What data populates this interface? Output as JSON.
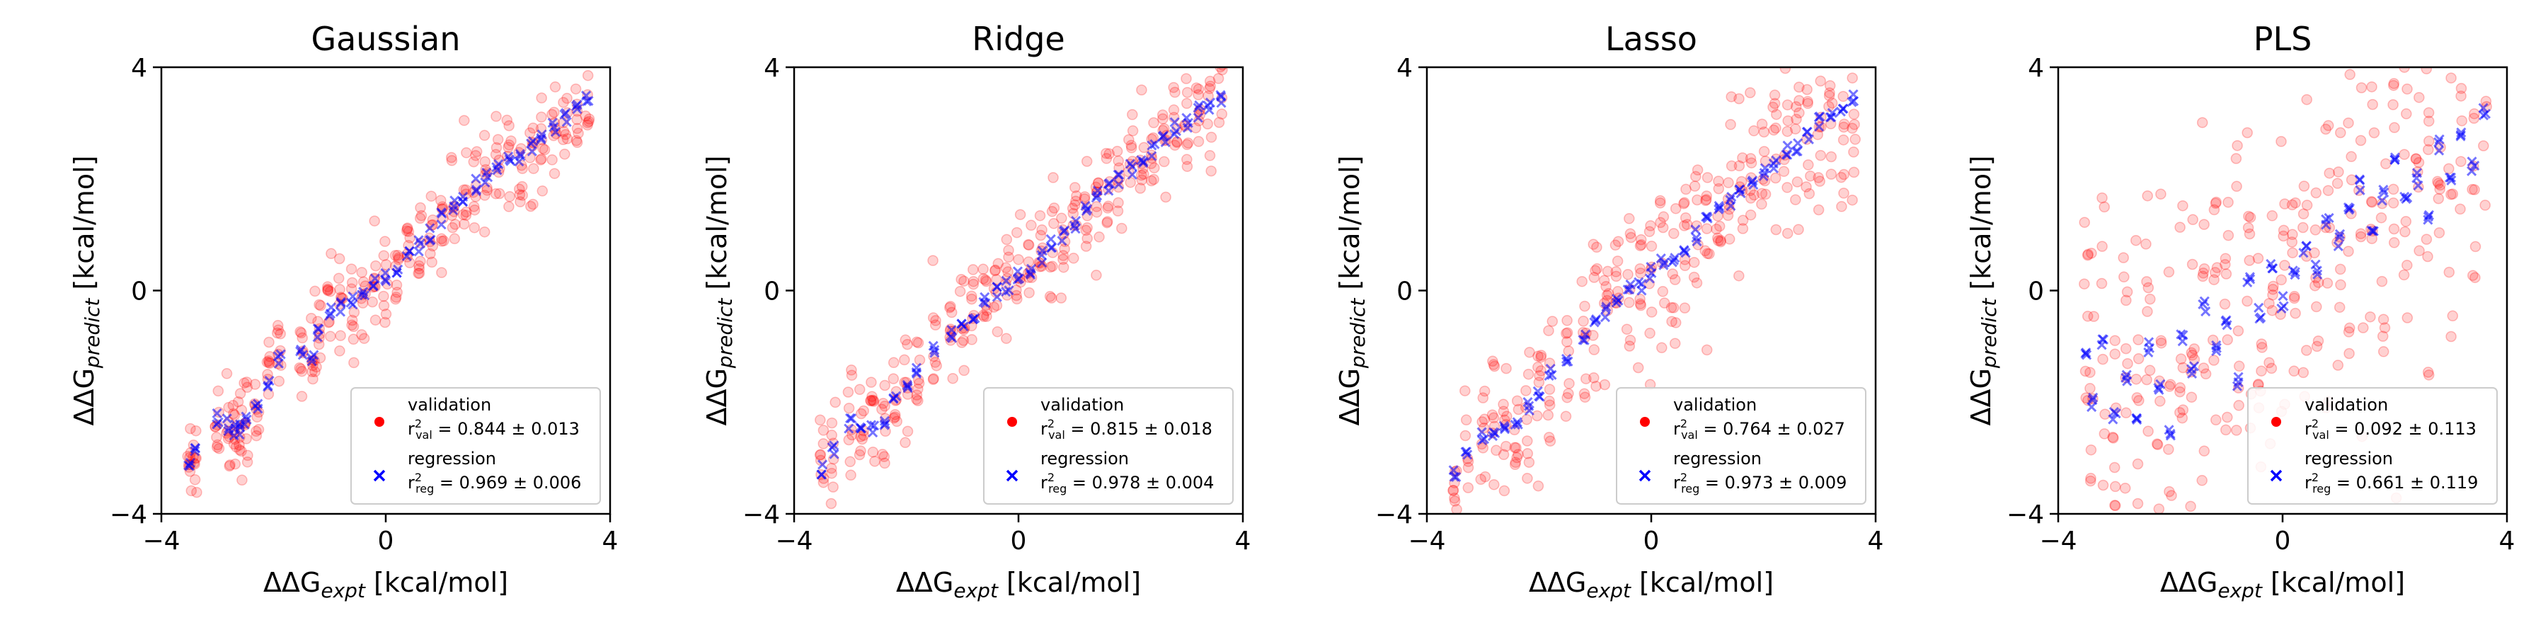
{
  "figure": {
    "x_label": {
      "symbol": "ΔΔG",
      "subscript": "expt",
      "unit": "[kcal/mol]"
    },
    "y_label": {
      "symbol": "ΔΔG",
      "subscript": "predict",
      "unit": "[kcal/mol]"
    },
    "legend": {
      "validation_label": "validation",
      "regression_label": "regression",
      "r_prefix": "r",
      "r_sup": "2",
      "val_sub": "val",
      "reg_sub": "reg"
    },
    "colors": {
      "validation": "#ff0000",
      "regression": "#0000ff"
    }
  },
  "chart_data": [
    {
      "type": "scatter",
      "title": "Gaussian",
      "xlim": [
        -4,
        4
      ],
      "ylim": [
        -4,
        4
      ],
      "xticks": [
        "−4",
        "0",
        "4"
      ],
      "yticks": [
        "−4",
        "0",
        "4"
      ],
      "legend_position": "lower-right",
      "noise": 0.45,
      "validation_stat": "= 0.844 ± 0.013",
      "regression_stat": "= 0.969 ± 0.006",
      "regression_points": [
        [
          -3.5,
          -3.1
        ],
        [
          -3.4,
          -2.9
        ],
        [
          -3.0,
          -2.3
        ],
        [
          -2.8,
          -2.4
        ],
        [
          -2.7,
          -2.5
        ],
        [
          -2.6,
          -2.5
        ],
        [
          -2.5,
          -2.3
        ],
        [
          -2.3,
          -2.0
        ],
        [
          -2.1,
          -1.6
        ],
        [
          -1.9,
          -1.2
        ],
        [
          -1.5,
          -1.1
        ],
        [
          -1.3,
          -1.2
        ],
        [
          -1.2,
          -0.8
        ],
        [
          -1.0,
          -0.4
        ],
        [
          -0.8,
          -0.3
        ],
        [
          -0.6,
          -0.2
        ],
        [
          -0.4,
          -0.1
        ],
        [
          -0.2,
          0.1
        ],
        [
          0.0,
          0.2
        ],
        [
          0.2,
          0.4
        ],
        [
          0.4,
          0.6
        ],
        [
          0.6,
          0.8
        ],
        [
          0.8,
          1.0
        ],
        [
          1.0,
          1.3
        ],
        [
          1.2,
          1.5
        ],
        [
          1.4,
          1.7
        ],
        [
          1.6,
          1.9
        ],
        [
          1.8,
          2.0
        ],
        [
          2.0,
          2.2
        ],
        [
          2.2,
          2.4
        ],
        [
          2.4,
          2.4
        ],
        [
          2.6,
          2.6
        ],
        [
          2.8,
          2.7
        ],
        [
          3.0,
          2.9
        ],
        [
          3.2,
          3.1
        ],
        [
          3.4,
          3.3
        ],
        [
          3.6,
          3.4
        ]
      ]
    },
    {
      "type": "scatter",
      "title": "Ridge",
      "xlim": [
        -4,
        4
      ],
      "ylim": [
        -4,
        4
      ],
      "xticks": [
        "−4",
        "0",
        "4"
      ],
      "yticks": [
        "−4",
        "0",
        "4"
      ],
      "legend_position": "lower-right",
      "noise": 0.5,
      "validation_stat": "= 0.815 ± 0.018",
      "regression_stat": "= 0.978 ± 0.004",
      "regression_points": [
        [
          -3.5,
          -3.2
        ],
        [
          -3.3,
          -2.9
        ],
        [
          -3.0,
          -2.4
        ],
        [
          -2.8,
          -2.5
        ],
        [
          -2.6,
          -2.5
        ],
        [
          -2.4,
          -2.3
        ],
        [
          -2.2,
          -2.0
        ],
        [
          -2.0,
          -1.7
        ],
        [
          -1.8,
          -1.5
        ],
        [
          -1.5,
          -1.1
        ],
        [
          -1.2,
          -0.8
        ],
        [
          -1.0,
          -0.6
        ],
        [
          -0.8,
          -0.4
        ],
        [
          -0.6,
          -0.2
        ],
        [
          -0.4,
          0.0
        ],
        [
          -0.2,
          0.1
        ],
        [
          0.0,
          0.3
        ],
        [
          0.2,
          0.4
        ],
        [
          0.4,
          0.6
        ],
        [
          0.6,
          0.8
        ],
        [
          0.8,
          1.0
        ],
        [
          1.0,
          1.2
        ],
        [
          1.2,
          1.4
        ],
        [
          1.4,
          1.7
        ],
        [
          1.6,
          1.9
        ],
        [
          1.8,
          2.0
        ],
        [
          2.0,
          2.2
        ],
        [
          2.2,
          2.4
        ],
        [
          2.4,
          2.5
        ],
        [
          2.6,
          2.7
        ],
        [
          2.8,
          2.9
        ],
        [
          3.0,
          3.0
        ],
        [
          3.2,
          3.2
        ],
        [
          3.4,
          3.3
        ],
        [
          3.6,
          3.4
        ]
      ]
    },
    {
      "type": "scatter",
      "title": "Lasso",
      "xlim": [
        -4,
        4
      ],
      "ylim": [
        -4,
        4
      ],
      "xticks": [
        "−4",
        "0",
        "4"
      ],
      "yticks": [
        "−4",
        "0",
        "4"
      ],
      "legend_position": "lower-right",
      "noise": 0.8,
      "validation_stat": "= 0.764 ± 0.027",
      "regression_stat": "= 0.973 ± 0.009",
      "regression_points": [
        [
          -3.5,
          -3.3
        ],
        [
          -3.3,
          -3.0
        ],
        [
          -3.0,
          -2.6
        ],
        [
          -2.8,
          -2.6
        ],
        [
          -2.6,
          -2.5
        ],
        [
          -2.4,
          -2.3
        ],
        [
          -2.2,
          -2.1
        ],
        [
          -2.0,
          -1.8
        ],
        [
          -1.8,
          -1.5
        ],
        [
          -1.5,
          -1.2
        ],
        [
          -1.2,
          -0.9
        ],
        [
          -1.0,
          -0.6
        ],
        [
          -0.8,
          -0.4
        ],
        [
          -0.6,
          -0.2
        ],
        [
          -0.4,
          0.0
        ],
        [
          -0.2,
          0.1
        ],
        [
          0.0,
          0.3
        ],
        [
          0.2,
          0.5
        ],
        [
          0.4,
          0.6
        ],
        [
          0.6,
          0.8
        ],
        [
          0.8,
          1.0
        ],
        [
          1.0,
          1.2
        ],
        [
          1.2,
          1.4
        ],
        [
          1.4,
          1.6
        ],
        [
          1.6,
          1.8
        ],
        [
          1.8,
          2.0
        ],
        [
          2.0,
          2.1
        ],
        [
          2.2,
          2.3
        ],
        [
          2.4,
          2.5
        ],
        [
          2.6,
          2.6
        ],
        [
          2.8,
          2.8
        ],
        [
          3.0,
          3.0
        ],
        [
          3.2,
          3.1
        ],
        [
          3.4,
          3.3
        ],
        [
          3.6,
          3.4
        ]
      ]
    },
    {
      "type": "scatter",
      "title": "PLS",
      "xlim": [
        -4,
        4
      ],
      "ylim": [
        -4,
        4
      ],
      "xticks": [
        "−4",
        "0",
        "4"
      ],
      "yticks": [
        "−4",
        "0",
        "4"
      ],
      "legend_position": "lower-right",
      "noise": 1.6,
      "validation_stat": "= 0.092 ± 0.113",
      "regression_stat": "= 0.661 ± 0.119",
      "regression_points": [
        [
          -3.5,
          -1.2
        ],
        [
          -3.4,
          -2.0
        ],
        [
          -3.2,
          -0.9
        ],
        [
          -3.0,
          -2.2
        ],
        [
          -2.8,
          -1.5
        ],
        [
          -2.6,
          -2.4
        ],
        [
          -2.4,
          -1.0
        ],
        [
          -2.2,
          -1.8
        ],
        [
          -2.0,
          -2.5
        ],
        [
          -1.8,
          -0.8
        ],
        [
          -1.6,
          -1.4
        ],
        [
          -1.4,
          -0.3
        ],
        [
          -1.2,
          -1.0
        ],
        [
          -1.0,
          -0.6
        ],
        [
          -0.8,
          -1.6
        ],
        [
          -0.6,
          0.2
        ],
        [
          -0.4,
          -0.4
        ],
        [
          -0.2,
          0.5
        ],
        [
          0.0,
          -0.2
        ],
        [
          0.2,
          0.3
        ],
        [
          0.4,
          0.8
        ],
        [
          0.6,
          0.4
        ],
        [
          0.8,
          1.2
        ],
        [
          1.0,
          0.9
        ],
        [
          1.2,
          1.5
        ],
        [
          1.4,
          1.9
        ],
        [
          1.6,
          1.1
        ],
        [
          1.8,
          1.7
        ],
        [
          2.0,
          2.3
        ],
        [
          2.2,
          1.6
        ],
        [
          2.4,
          2.0
        ],
        [
          2.6,
          1.3
        ],
        [
          2.8,
          2.6
        ],
        [
          3.0,
          1.9
        ],
        [
          3.2,
          2.8
        ],
        [
          3.4,
          2.2
        ],
        [
          3.6,
          3.2
        ]
      ]
    }
  ]
}
